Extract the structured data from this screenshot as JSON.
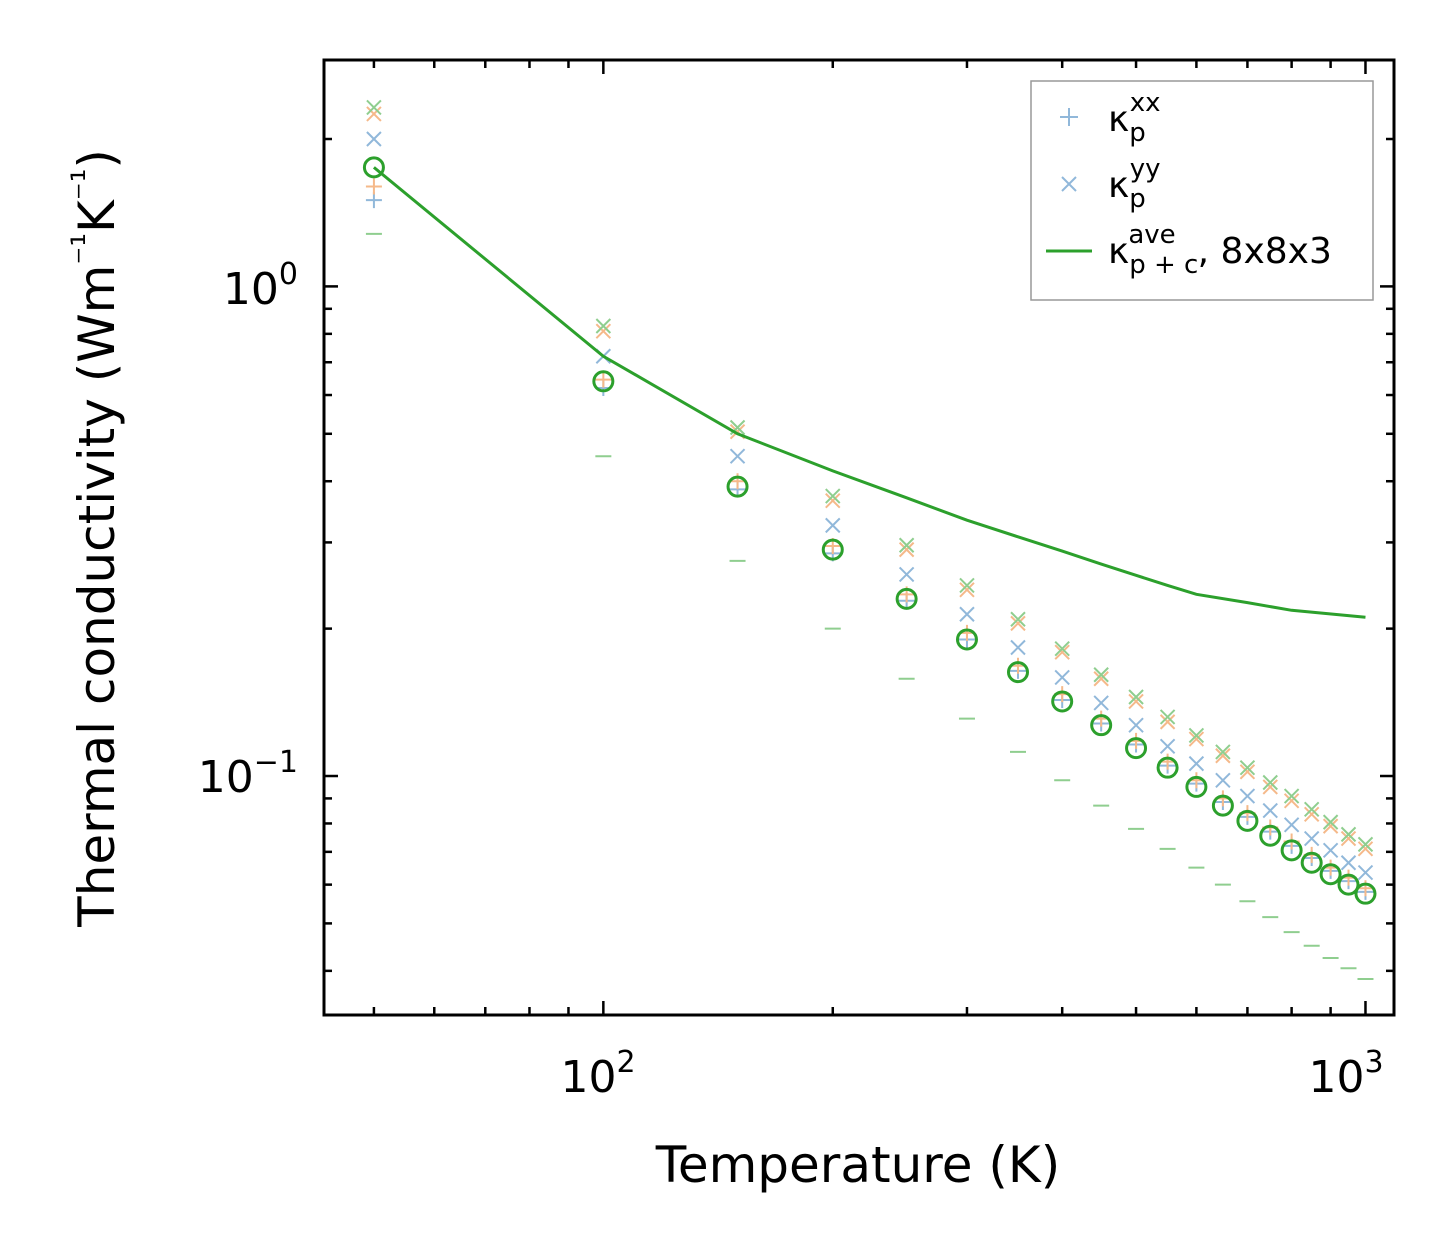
{
  "chart_data": {
    "type": "scatter",
    "xlabel": "Temperature (K)",
    "ylabel": "Thermal conductivity (Wm",
    "ylabel_unit_parts": [
      "⁻¹",
      "K",
      "⁻¹",
      ")"
    ],
    "x_scale": "log",
    "y_scale": "log",
    "xlim": [
      43,
      1090
    ],
    "ylim": [
      0.0325,
      2.9
    ],
    "x_ticks": [
      {
        "value": 100,
        "base": "10",
        "exp": "2"
      },
      {
        "value": 1000,
        "base": "10",
        "exp": "3"
      }
    ],
    "y_ticks": [
      {
        "value": 1,
        "base": "10",
        "exp": "0"
      },
      {
        "value": 0.1,
        "base": "10",
        "exp": "−1"
      }
    ],
    "grid": false,
    "legend": {
      "placement": "top-right",
      "entries": [
        {
          "label": "κ",
          "sub": "p",
          "sup": "xx",
          "marker": "plus",
          "color": "#91b8da"
        },
        {
          "label": "κ",
          "sub": "p",
          "sup": "yy",
          "marker": "x",
          "color": "#91b8da"
        },
        {
          "label": "κ",
          "sub": "p + c",
          "sup": "ave",
          "suffix": ", 8x8x3",
          "marker": "line",
          "color": "#2ca02c"
        }
      ]
    },
    "x": [
      50,
      100,
      150,
      200,
      250,
      300,
      350,
      400,
      450,
      500,
      550,
      600,
      650,
      700,
      750,
      800,
      850,
      900,
      950,
      1000
    ],
    "series": [
      {
        "name": "kappa_p_xx_blue",
        "marker": "plus",
        "color": "#91b8da",
        "values": [
          1.5,
          0.62,
          0.385,
          0.285,
          0.228,
          0.19,
          0.164,
          0.143,
          0.128,
          0.116,
          0.105,
          0.0965,
          0.0885,
          0.0825,
          0.077,
          0.072,
          0.068,
          0.064,
          0.061,
          0.058
        ]
      },
      {
        "name": "kappa_p_xx_orange",
        "marker": "plus",
        "color": "#f5b98a",
        "values": [
          1.6,
          0.645,
          0.4,
          0.295,
          0.235,
          0.196,
          0.168,
          0.147,
          0.131,
          0.118,
          0.107,
          0.098,
          0.09,
          0.084,
          0.0785,
          0.0735,
          0.069,
          0.065,
          0.062,
          0.059
        ]
      },
      {
        "name": "kappa_p_xx_green",
        "marker": "dash",
        "color": "#8fce8f",
        "values": [
          1.28,
          0.45,
          0.275,
          0.2,
          0.158,
          0.131,
          0.112,
          0.098,
          0.087,
          0.078,
          0.071,
          0.065,
          0.06,
          0.0555,
          0.0515,
          0.048,
          0.045,
          0.0425,
          0.0405,
          0.0385
        ]
      },
      {
        "name": "kappa_p_yy_blue",
        "marker": "x",
        "color": "#91b8da",
        "values": [
          2.0,
          0.72,
          0.45,
          0.325,
          0.258,
          0.214,
          0.183,
          0.159,
          0.141,
          0.127,
          0.115,
          0.106,
          0.098,
          0.091,
          0.085,
          0.0795,
          0.0745,
          0.0705,
          0.0665,
          0.0635
        ]
      },
      {
        "name": "kappa_p_yy_orange",
        "marker": "x",
        "color": "#f5b98a",
        "values": [
          2.25,
          0.81,
          0.505,
          0.365,
          0.29,
          0.24,
          0.205,
          0.179,
          0.158,
          0.142,
          0.129,
          0.119,
          0.11,
          0.102,
          0.095,
          0.089,
          0.0835,
          0.079,
          0.0745,
          0.071
        ]
      },
      {
        "name": "kappa_p_yy_green",
        "marker": "x",
        "color": "#8fce8f",
        "values": [
          2.32,
          0.83,
          0.515,
          0.373,
          0.296,
          0.245,
          0.209,
          0.182,
          0.161,
          0.145,
          0.132,
          0.121,
          0.112,
          0.104,
          0.097,
          0.091,
          0.0855,
          0.0805,
          0.076,
          0.0725
        ]
      },
      {
        "name": "kappa_p_ave_circles",
        "marker": "circle",
        "color": "#2ca02c",
        "values": [
          1.75,
          0.64,
          0.39,
          0.29,
          0.23,
          0.19,
          0.163,
          0.142,
          0.127,
          0.114,
          0.104,
          0.095,
          0.087,
          0.081,
          0.0755,
          0.0705,
          0.0665,
          0.063,
          0.06,
          0.0575
        ]
      },
      {
        "name": "kappa_p_c_ave_8x8x3",
        "marker": "line",
        "color": "#2ca02c",
        "values": [
          1.75,
          0.72,
          0.5,
          0.42,
          0.37,
          0.333,
          0.308,
          0.288,
          0.271,
          0.257,
          0.245,
          0.235,
          0.226,
          0.218,
          0.211
        ]
      }
    ],
    "line_x": [
      50,
      100,
      150,
      200,
      250,
      300,
      350,
      400,
      450,
      500,
      550,
      600,
      700,
      800,
      1000
    ]
  }
}
